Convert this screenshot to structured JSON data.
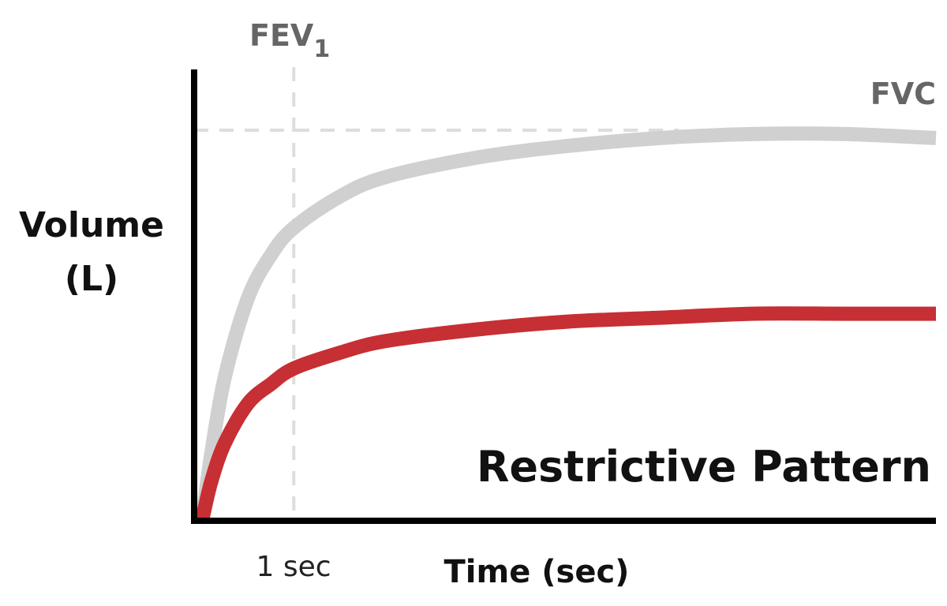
{
  "chart_data": {
    "type": "line",
    "title": "Restrictive Pattern",
    "ylabel_lines": [
      "Volume",
      "(L)"
    ],
    "xlabel": "Time (sec)",
    "x_tick_label": "1 sec",
    "x_tick_value": 1,
    "fev1_label": "FEV",
    "fev1_sub": "1",
    "fvc_label": "FVC",
    "fvc_value": 1.0,
    "xlim": [
      0,
      8
    ],
    "ylim": [
      0,
      1.2
    ],
    "grid": false,
    "colors": {
      "axis": "#000000",
      "reference": "#d0d0d0",
      "restrictive": "#c62f33",
      "guide": "#dddddd"
    },
    "series": [
      {
        "x": [
          0,
          0.1,
          0.25,
          0.5,
          0.75,
          1,
          1.5,
          2,
          3,
          4,
          5,
          6,
          7,
          8
        ],
        "y": [
          0,
          0.17,
          0.37,
          0.57,
          0.68,
          0.75,
          0.83,
          0.88,
          0.93,
          0.96,
          0.98,
          0.99,
          0.99,
          0.98
        ]
      },
      {
        "x": [
          0,
          0.1,
          0.25,
          0.5,
          0.75,
          1,
          1.5,
          2,
          3,
          4,
          5,
          6,
          7,
          8
        ],
        "y": [
          0,
          0.1,
          0.2,
          0.3,
          0.35,
          0.39,
          0.43,
          0.46,
          0.49,
          0.51,
          0.52,
          0.53,
          0.53,
          0.53
        ]
      }
    ]
  }
}
